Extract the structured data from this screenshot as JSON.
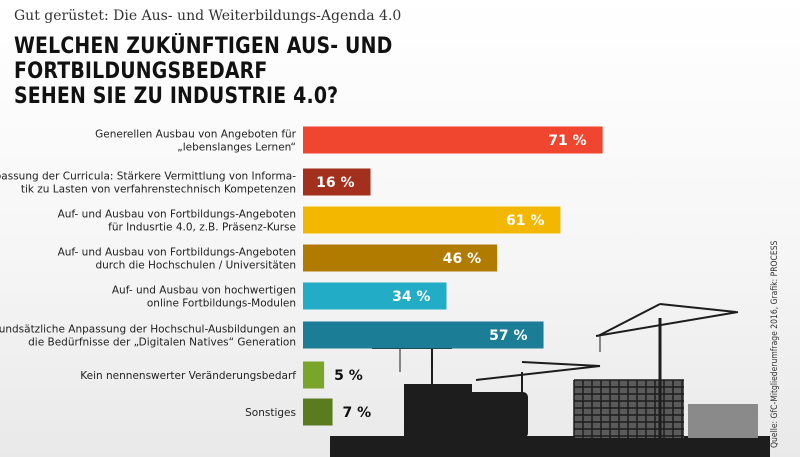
{
  "header": {
    "subtitle": "Gut gerüstet: Die Aus- und Weiterbildungs-Agenda 4.0",
    "title_line1": "WELCHEN ZUKÜNFTIGEN AUS- UND FORTBILDUNGSBEDARF",
    "title_line2": "SEHEN SIE ZU INDUSTRIE 4.0?"
  },
  "source": "Quelle: GfC-Mitgliederumfrage 2016, Grafik: PROCESS",
  "colors": {
    "bars": [
      "#f0452e",
      "#a3301c",
      "#f4b700",
      "#b17b00",
      "#23acc6",
      "#1c7d96",
      "#79a62a",
      "#5b7b1f"
    ],
    "silhouette": "#1d1d1d"
  },
  "chart_data": {
    "type": "bar",
    "orientation": "horizontal",
    "title": "WELCHEN ZUKÜNFTIGEN AUS- UND FORTBILDUNGSBEDARF SEHEN SIE ZU INDUSTRIE 4.0?",
    "unit": "%",
    "xlim": [
      0,
      100
    ],
    "categories": [
      [
        "Generellen Ausbau von Angeboten für",
        "„lebenslanges Lernen“"
      ],
      [
        "Anpassung der Curricula: Stärkere Vermittlung von Informa-",
        "tik zu Lasten von verfahrenstechnisch Kompetenzen"
      ],
      [
        "Auf- und Ausbau von Fortbildungs-Angeboten",
        "für Indusrtie 4.0, z.B. Präsenz-Kurse"
      ],
      [
        "Auf- und Ausbau von Fortbildungs-Angeboten",
        "durch die Hochschulen / Universitäten"
      ],
      [
        "Auf- und Ausbau von hochwertigen",
        "online Fortbildungs-Modulen"
      ],
      [
        "Grundsätzliche Anpassung der Hochschul-Ausbildungen an",
        "die Bedürfnisse der „Digitalen Natives“ Generation"
      ],
      [
        "Kein nennenswerter Veränderungsbedarf"
      ],
      [
        "Sonstiges"
      ]
    ],
    "values": [
      71,
      16,
      61,
      46,
      34,
      57,
      5,
      7
    ],
    "value_labels": [
      "71 %",
      "16 %",
      "61 %",
      "46 %",
      "34 %",
      "57 %",
      "5 %",
      "7 %"
    ]
  }
}
